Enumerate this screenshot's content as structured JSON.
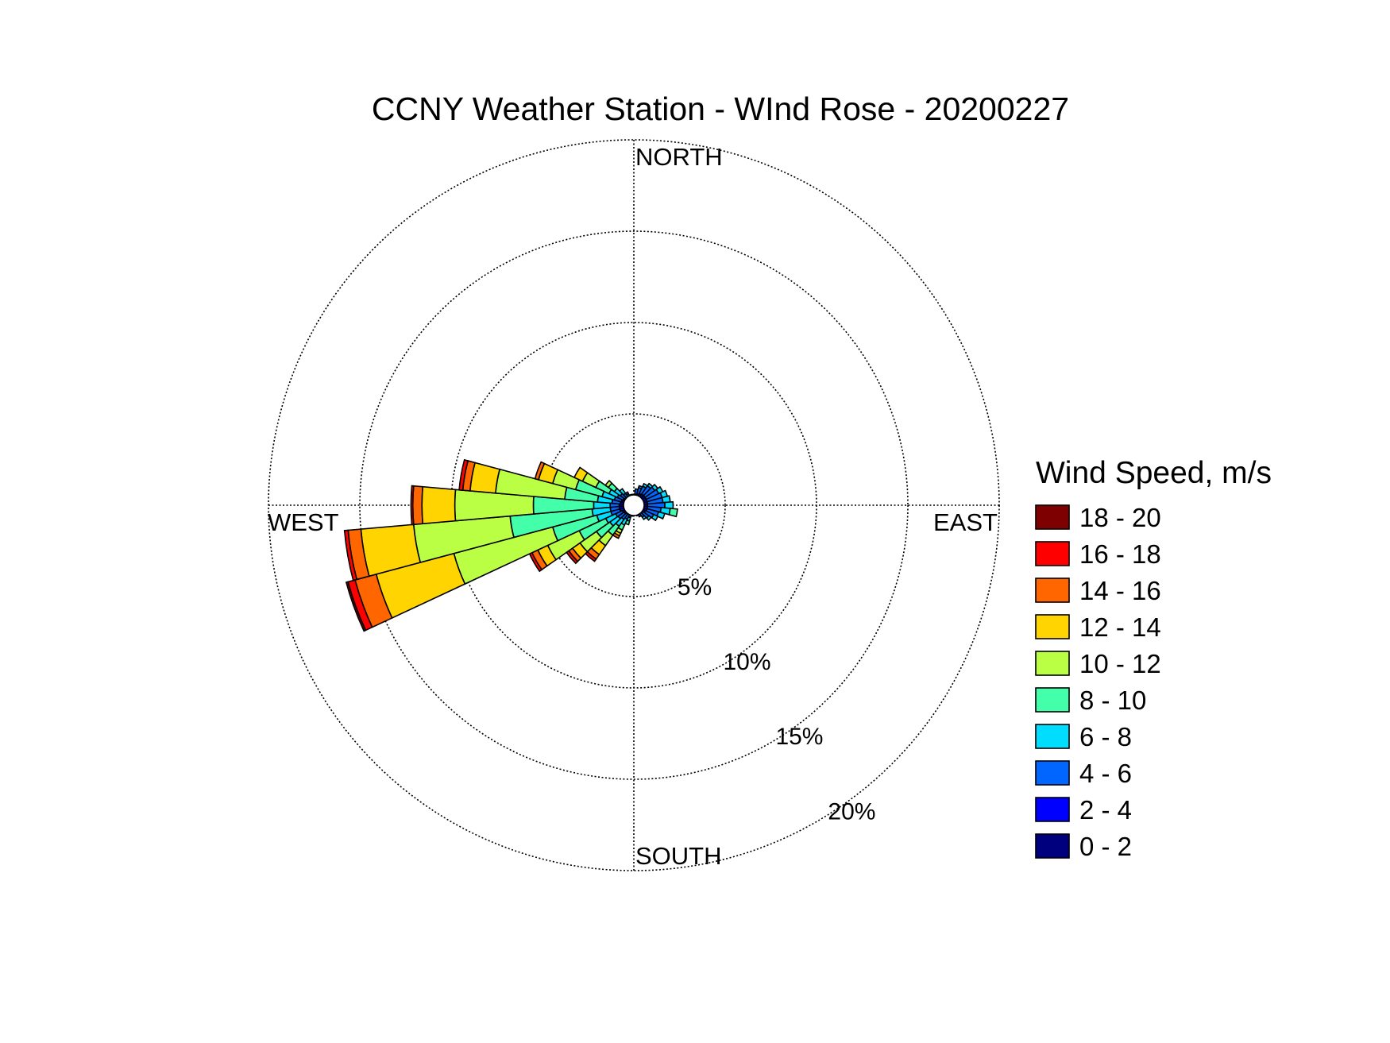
{
  "chart_data": {
    "type": "windrose",
    "title": "CCNY Weather Station - WInd Rose - 20200227",
    "direction_labels": {
      "north": "NORTH",
      "east": "EAST",
      "south": "SOUTH",
      "west": "WEST"
    },
    "radial_ticks": [
      {
        "value": 5,
        "label": "5%"
      },
      {
        "value": 10,
        "label": "10%"
      },
      {
        "value": 15,
        "label": "15%"
      },
      {
        "value": 20,
        "label": "20%"
      }
    ],
    "rmax": 20,
    "grid": true,
    "legend": {
      "title": "Wind Speed, m/s",
      "placement": "right"
    },
    "speed_bins": [
      {
        "label": "0 - 2",
        "color": "#00007f"
      },
      {
        "label": "2 - 4",
        "color": "#0000ff"
      },
      {
        "label": "4 - 6",
        "color": "#0066ff"
      },
      {
        "label": "6 - 8",
        "color": "#00ddff"
      },
      {
        "label": "8 - 10",
        "color": "#44ffaa"
      },
      {
        "label": "10 - 12",
        "color": "#bbff44"
      },
      {
        "label": "12 - 14",
        "color": "#ffd400"
      },
      {
        "label": "14 - 16",
        "color": "#ff6600"
      },
      {
        "label": "16 - 18",
        "color": "#ff0000"
      },
      {
        "label": "18 - 20",
        "color": "#7f0000"
      }
    ],
    "sector_width_deg": 10,
    "sectors": [
      {
        "direction": 0,
        "cumulative": [
          0.3,
          0.45,
          0.6
        ]
      },
      {
        "direction": 10,
        "cumulative": [
          0.3,
          0.6,
          0.9
        ]
      },
      {
        "direction": 20,
        "cumulative": [
          0.3,
          0.65,
          1.0,
          1.1
        ]
      },
      {
        "direction": 30,
        "cumulative": [
          0.3,
          0.7,
          1.15,
          1.3
        ]
      },
      {
        "direction": 40,
        "cumulative": [
          0.3,
          0.75,
          1.3,
          1.45
        ]
      },
      {
        "direction": 50,
        "cumulative": [
          0.3,
          0.75,
          1.4,
          1.6
        ]
      },
      {
        "direction": 60,
        "cumulative": [
          0.3,
          0.75,
          1.5,
          1.75
        ]
      },
      {
        "direction": 70,
        "cumulative": [
          0.3,
          0.75,
          1.6,
          1.9
        ]
      },
      {
        "direction": 80,
        "cumulative": [
          0.3,
          0.75,
          1.6,
          2.0
        ]
      },
      {
        "direction": 90,
        "cumulative": [
          0.3,
          0.75,
          1.7,
          2.15
        ]
      },
      {
        "direction": 100,
        "cumulative": [
          0.3,
          0.75,
          1.5,
          2.0,
          2.4
        ]
      },
      {
        "direction": 110,
        "cumulative": [
          0.3,
          0.75,
          1.4,
          1.75
        ]
      },
      {
        "direction": 120,
        "cumulative": [
          0.3,
          0.7,
          1.2,
          1.45
        ]
      },
      {
        "direction": 130,
        "cumulative": [
          0.3,
          0.6,
          1.0,
          1.15
        ]
      },
      {
        "direction": 140,
        "cumulative": [
          0.3,
          0.55,
          0.8,
          0.95
        ]
      },
      {
        "direction": 150,
        "cumulative": [
          0.3,
          0.5,
          0.7
        ]
      },
      {
        "direction": 160,
        "cumulative": [
          0.3,
          0.45,
          0.6
        ]
      },
      {
        "direction": 170,
        "cumulative": [
          0.3,
          0.45,
          0.55
        ]
      },
      {
        "direction": 180,
        "cumulative": [
          0.3,
          0.45,
          0.55
        ]
      },
      {
        "direction": 190,
        "cumulative": [
          0.3,
          0.45,
          0.6
        ]
      },
      {
        "direction": 200,
        "cumulative": [
          0.3,
          0.5,
          0.7,
          0.9,
          1.1
        ]
      },
      {
        "direction": 210,
        "cumulative": [
          0.3,
          0.55,
          0.85,
          1.2,
          1.5,
          1.7,
          1.85,
          2.0
        ]
      },
      {
        "direction": 220,
        "cumulative": [
          0.3,
          0.6,
          0.95,
          1.4,
          2.0,
          2.7,
          3.3,
          3.6,
          3.75
        ]
      },
      {
        "direction": 230,
        "cumulative": [
          0.3,
          0.65,
          1.05,
          1.6,
          2.5,
          3.6,
          4.1,
          4.35,
          4.5
        ]
      },
      {
        "direction": 240,
        "cumulative": [
          0.3,
          0.7,
          1.1,
          1.7,
          3.3,
          5.2,
          5.8,
          6.15,
          6.3
        ]
      },
      {
        "direction": 250,
        "cumulative": [
          0.3,
          0.8,
          1.3,
          2.1,
          4.6,
          10.2,
          14.6,
          15.8,
          16.2,
          16.3
        ]
      },
      {
        "direction": 260,
        "cumulative": [
          0.3,
          0.8,
          1.3,
          2.3,
          6.8,
          12.1,
          15.0,
          15.7,
          15.9
        ]
      },
      {
        "direction": 270,
        "cumulative": [
          0.3,
          0.8,
          1.3,
          2.2,
          5.5,
          9.8,
          11.6,
          12.1,
          12.2
        ]
      },
      {
        "direction": 280,
        "cumulative": [
          0.3,
          0.75,
          1.2,
          2.0,
          3.8,
          7.6,
          9.0,
          9.4,
          9.6
        ]
      },
      {
        "direction": 290,
        "cumulative": [
          0.3,
          0.7,
          1.1,
          1.8,
          3.3,
          4.6,
          5.4,
          5.6
        ]
      },
      {
        "direction": 300,
        "cumulative": [
          0.3,
          0.65,
          1.0,
          1.5,
          2.3,
          3.1,
          3.6
        ]
      },
      {
        "direction": 310,
        "cumulative": [
          0.3,
          0.6,
          0.9,
          1.3,
          1.7,
          1.9
        ]
      },
      {
        "direction": 320,
        "cumulative": [
          0.3,
          0.55,
          0.8,
          1.1
        ]
      },
      {
        "direction": 330,
        "cumulative": [
          0.3,
          0.5,
          0.7,
          0.8
        ]
      },
      {
        "direction": 340,
        "cumulative": [
          0.3,
          0.45,
          0.6
        ]
      },
      {
        "direction": 350,
        "cumulative": [
          0.3,
          0.45,
          0.6
        ]
      }
    ]
  }
}
